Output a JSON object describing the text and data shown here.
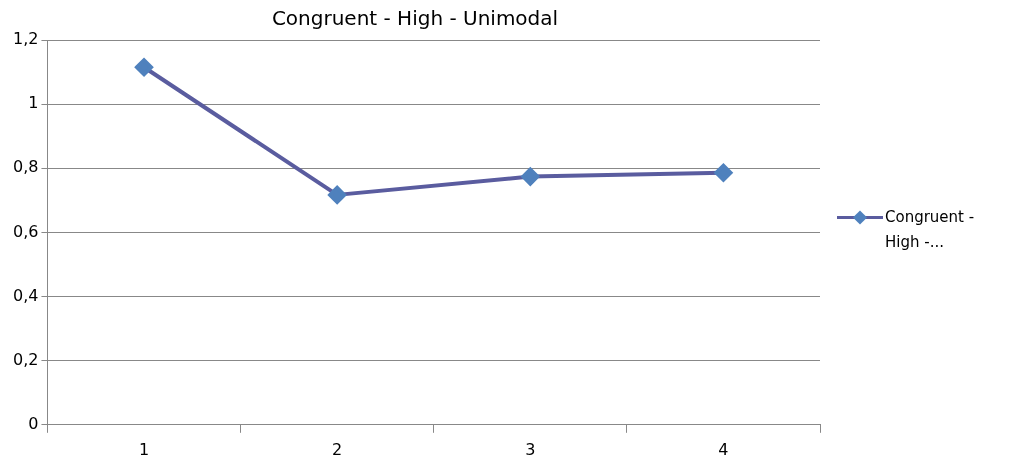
{
  "chart_data": {
    "type": "line",
    "title": "Congruent - High - Unimodal",
    "categories": [
      "1",
      "2",
      "3",
      "4"
    ],
    "series": [
      {
        "name": "Congruent - High -...",
        "color": "#5a5c9f",
        "values": [
          1.115,
          0.717,
          0.774,
          0.786
        ]
      }
    ],
    "ylim": [
      0,
      1.2
    ],
    "yticks": [
      0,
      {
        "value": 0.2,
        "label": "0,2"
      },
      {
        "value": 0.4,
        "label": "0,4"
      },
      {
        "value": 0.6,
        "label": "0,6"
      },
      {
        "value": 0.8,
        "label": "0,8"
      },
      1,
      {
        "value": 1.2,
        "label": "1,2"
      }
    ],
    "grid": "y",
    "legend": "right",
    "marker": "diamond"
  }
}
